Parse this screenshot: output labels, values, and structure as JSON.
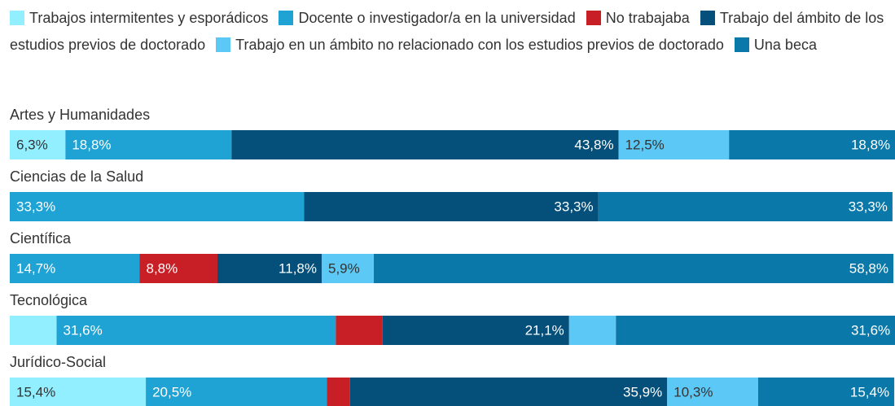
{
  "chart_data": {
    "type": "stacked_bar_horizontal",
    "categories": [
      "Artes y Humanidades",
      "Ciencias de la Salud",
      "Científica",
      "Tecnológica",
      "Jurídico-Social"
    ],
    "xlim": [
      0,
      100
    ],
    "legend": "top",
    "series": [
      {
        "name": "Trabajos intermitentes y esporádicos",
        "color": "#92efff",
        "values": [
          6.3,
          null,
          null,
          5.3,
          15.4
        ],
        "value_labels": [
          "6,3%",
          null,
          null,
          null,
          "15,4%"
        ]
      },
      {
        "name": "Docente o investigador/a en la universidad",
        "color": "#1fa3d4",
        "values": [
          18.8,
          33.3,
          14.7,
          31.6,
          20.5
        ],
        "value_labels": [
          "18,8%",
          "33,3%",
          "14,7%",
          "31,6%",
          "20,5%"
        ]
      },
      {
        "name": "No trabajaba",
        "color": "#c81e25",
        "values": [
          null,
          null,
          8.8,
          5.3,
          2.6
        ],
        "value_labels": [
          null,
          null,
          "8,8%",
          null,
          null
        ]
      },
      {
        "name": "Trabajo del ámbito de los estudios previos de doctorado",
        "color": "#05507a",
        "values": [
          43.8,
          33.3,
          11.8,
          21.1,
          35.9
        ],
        "value_labels": [
          "43,8%",
          "33,3%",
          "11,8%",
          "21,1%",
          "35,9%"
        ]
      },
      {
        "name": "Trabajo en un ámbito no relacionado con los estudios previos de doctorado",
        "color": "#5bc8f5",
        "values": [
          12.5,
          null,
          5.9,
          5.3,
          10.3
        ],
        "value_labels": [
          "12,5%",
          null,
          "5,9%",
          null,
          "10,3%"
        ]
      },
      {
        "name": "Una beca",
        "color": "#0a78a8",
        "values": [
          18.8,
          33.3,
          58.8,
          31.6,
          15.4
        ],
        "value_labels": [
          "18,8%",
          "33,3%",
          "58,8%",
          "31,6%",
          "15,4%"
        ]
      }
    ]
  }
}
